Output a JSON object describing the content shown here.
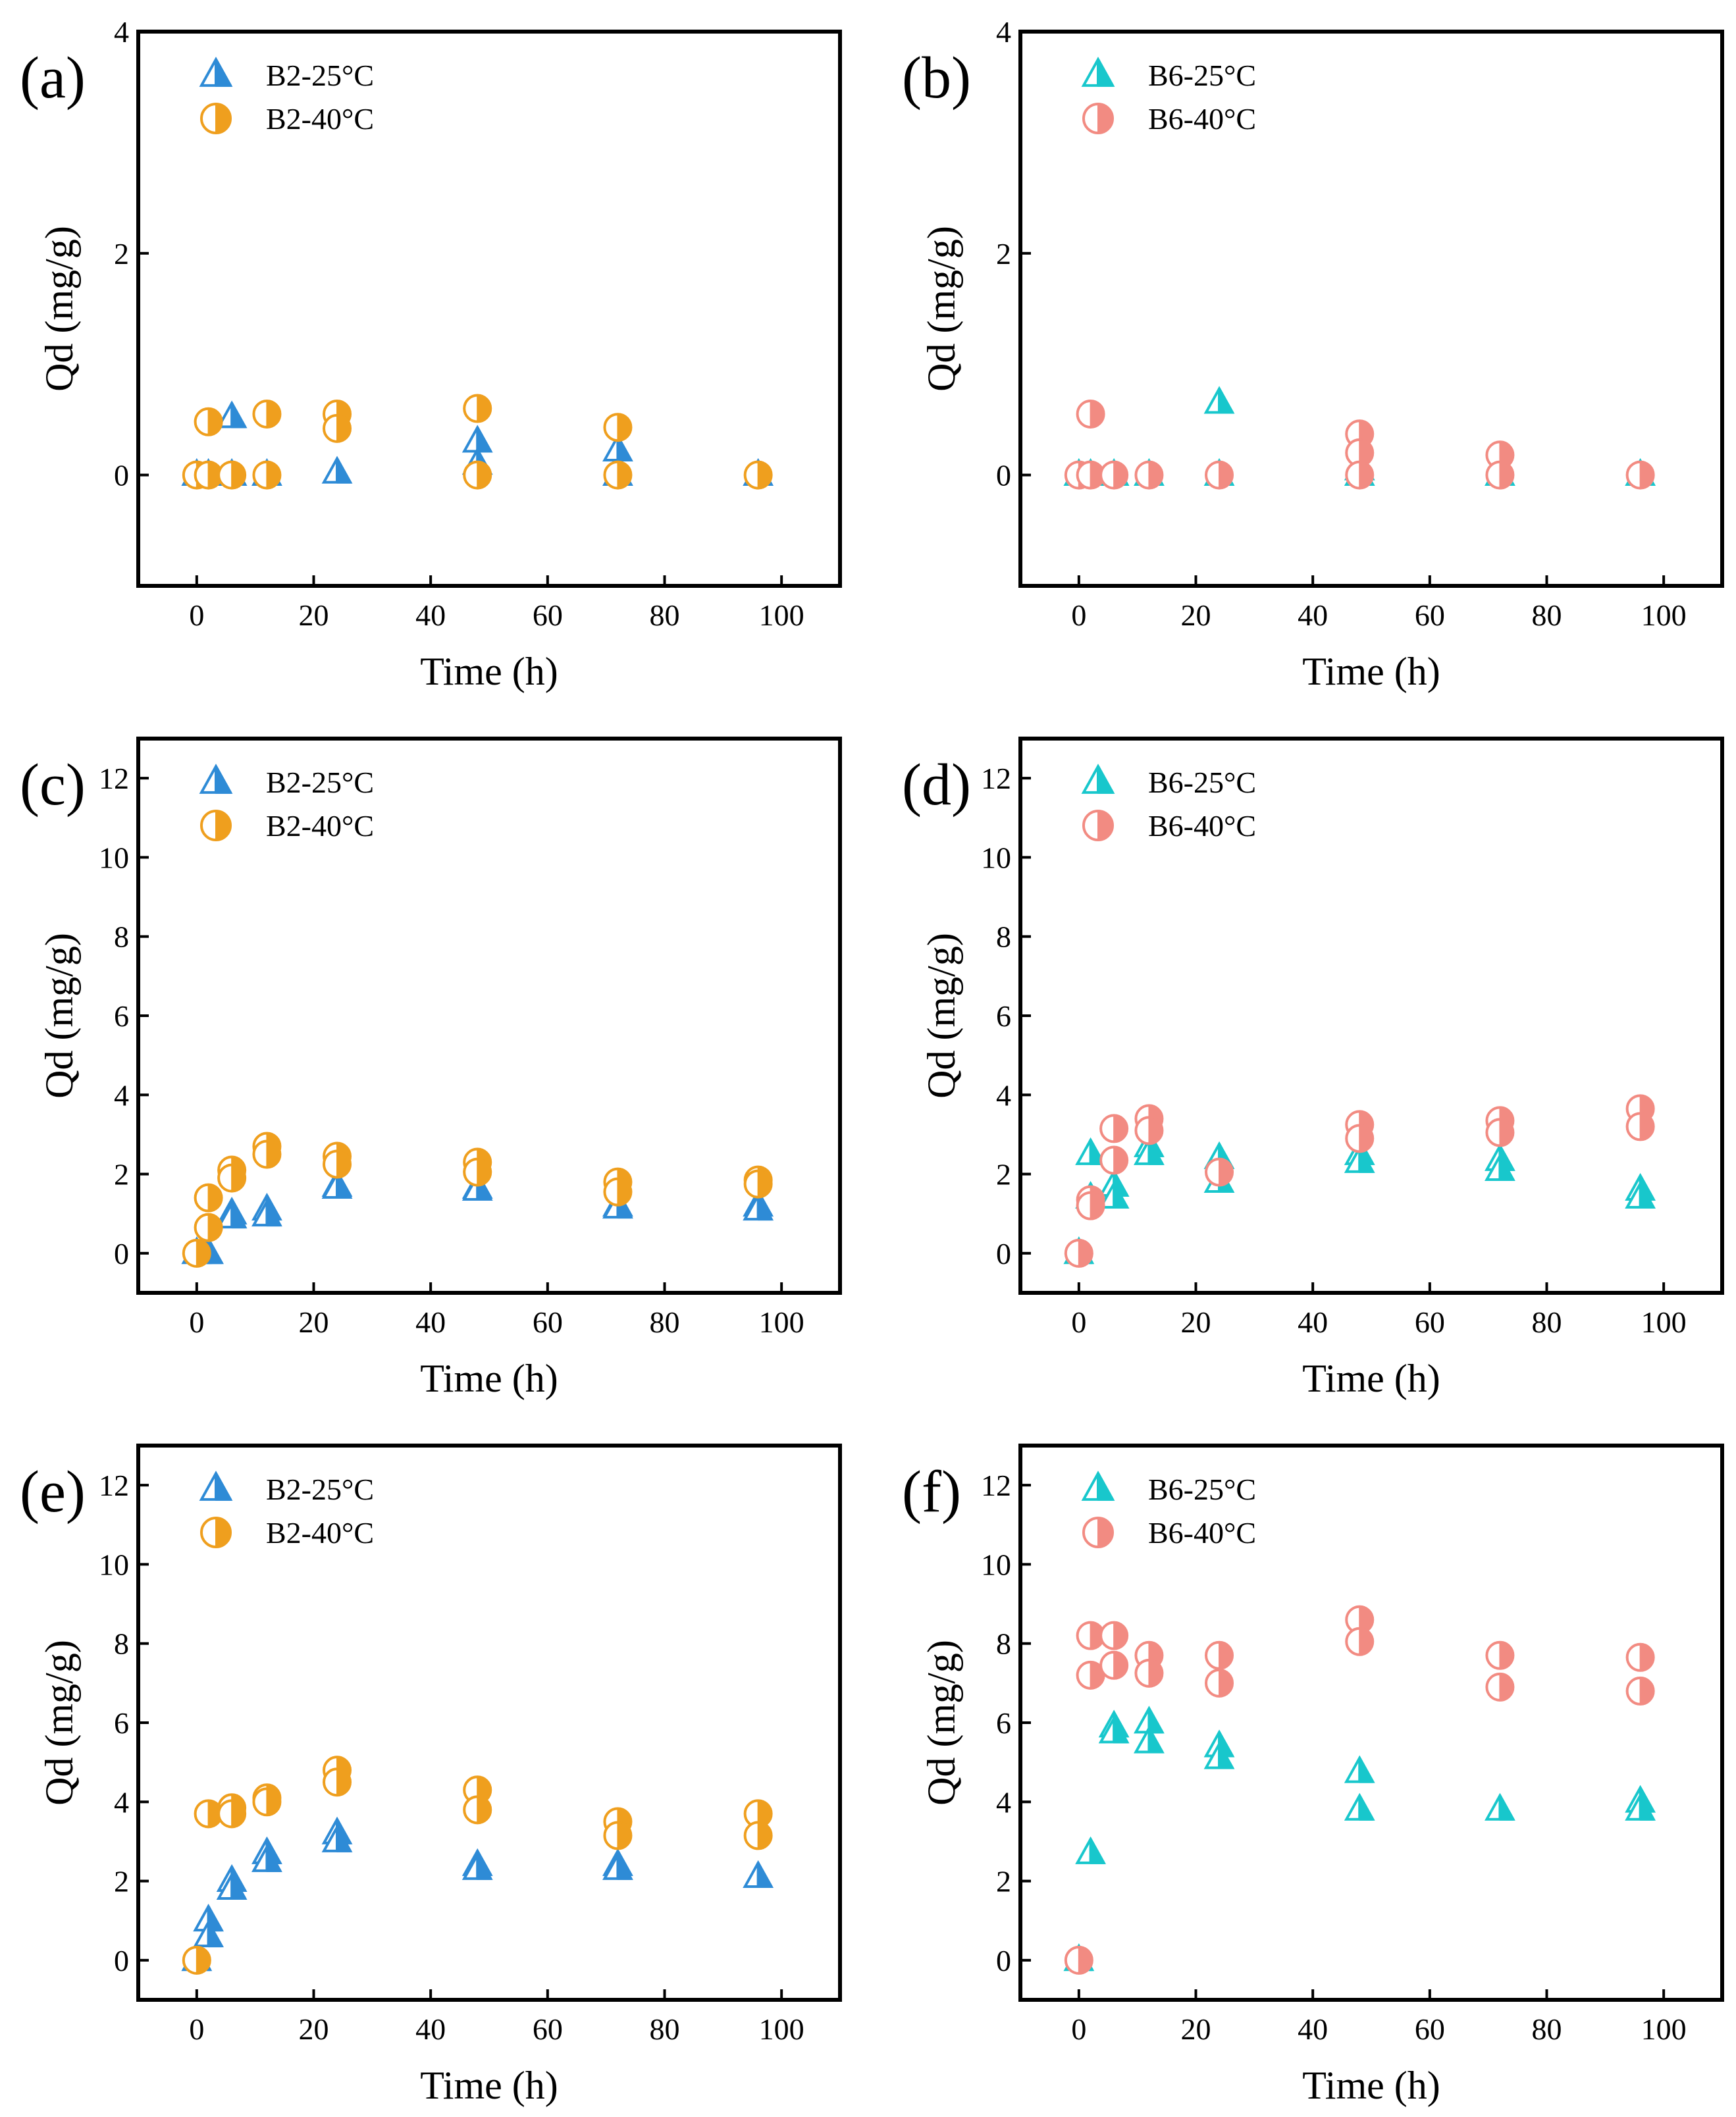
{
  "figure": {
    "colors": {
      "B2": "#2e8bd6",
      "B6_25": "#18c7cc",
      "B2_40": "#ef9f1e",
      "B6_40": "#f28b82"
    }
  },
  "chart_data": [
    {
      "panel": "(a)",
      "type": "scatter",
      "xlabel": "Time (h)",
      "ylabel": "Qd (mg/g)",
      "xlim": [
        -10,
        110
      ],
      "ylim": [
        -1,
        4
      ],
      "xticks": [
        0,
        20,
        40,
        60,
        80,
        100
      ],
      "yticks": [
        0,
        2,
        4
      ],
      "legend_position": "top-left",
      "series": [
        {
          "name": "B2-25°C",
          "marker": "triangle",
          "color_key": "B2",
          "points": [
            [
              0,
              0
            ],
            [
              2,
              0
            ],
            [
              6,
              0.52
            ],
            [
              6,
              0
            ],
            [
              12,
              0
            ],
            [
              24,
              0.02
            ],
            [
              48,
              0.3
            ],
            [
              48,
              0.1
            ],
            [
              72,
              0.22
            ],
            [
              72,
              0
            ],
            [
              96,
              0
            ]
          ]
        },
        {
          "name": "B2-40°C",
          "marker": "circle",
          "color_key": "B2_40",
          "points": [
            [
              0,
              0
            ],
            [
              2,
              0.48
            ],
            [
              2,
              0
            ],
            [
              6,
              0
            ],
            [
              12,
              0.55
            ],
            [
              12,
              0
            ],
            [
              24,
              0.55
            ],
            [
              24,
              0.42
            ],
            [
              48,
              0.6
            ],
            [
              48,
              0
            ],
            [
              72,
              0.43
            ],
            [
              72,
              0
            ],
            [
              96,
              0
            ]
          ]
        }
      ]
    },
    {
      "panel": "(b)",
      "type": "scatter",
      "xlabel": "Time (h)",
      "ylabel": "Qd (mg/g)",
      "xlim": [
        -10,
        110
      ],
      "ylim": [
        -1,
        4
      ],
      "xticks": [
        0,
        20,
        40,
        60,
        80,
        100
      ],
      "yticks": [
        0,
        2,
        4
      ],
      "legend_position": "top-left",
      "series": [
        {
          "name": "B6-25°C",
          "marker": "triangle",
          "color_key": "B6_25",
          "points": [
            [
              0,
              0
            ],
            [
              2,
              0
            ],
            [
              6,
              0
            ],
            [
              12,
              0
            ],
            [
              24,
              0.65
            ],
            [
              24,
              0
            ],
            [
              48,
              0.05
            ],
            [
              48,
              0
            ],
            [
              72,
              0
            ],
            [
              96,
              0
            ]
          ]
        },
        {
          "name": "B6-40°C",
          "marker": "circle",
          "color_key": "B6_40",
          "points": [
            [
              0,
              0
            ],
            [
              2,
              0.55
            ],
            [
              2,
              0
            ],
            [
              6,
              0
            ],
            [
              12,
              0
            ],
            [
              24,
              0
            ],
            [
              48,
              0.37
            ],
            [
              48,
              0.2
            ],
            [
              48,
              0
            ],
            [
              72,
              0.18
            ],
            [
              72,
              0
            ],
            [
              96,
              0
            ]
          ]
        }
      ]
    },
    {
      "panel": "(c)",
      "type": "scatter",
      "xlabel": "Time (h)",
      "ylabel": "Qd (mg/g)",
      "xlim": [
        -10,
        110
      ],
      "ylim": [
        -1,
        13
      ],
      "xticks": [
        0,
        20,
        40,
        60,
        80,
        100
      ],
      "yticks": [
        0,
        2,
        4,
        6,
        8,
        10,
        12
      ],
      "legend_position": "top-left",
      "series": [
        {
          "name": "B2-25°C",
          "marker": "triangle",
          "color_key": "B2",
          "points": [
            [
              0,
              0
            ],
            [
              2,
              0
            ],
            [
              6,
              1.0
            ],
            [
              6,
              0.9
            ],
            [
              12,
              1.1
            ],
            [
              12,
              0.95
            ],
            [
              24,
              1.7
            ],
            [
              24,
              1.65
            ],
            [
              48,
              1.65
            ],
            [
              48,
              1.6
            ],
            [
              72,
              1.2
            ],
            [
              72,
              1.15
            ],
            [
              96,
              1.2
            ],
            [
              96,
              1.1
            ]
          ]
        },
        {
          "name": "B2-40°C",
          "marker": "circle",
          "color_key": "B2_40",
          "points": [
            [
              0,
              0
            ],
            [
              2,
              1.4
            ],
            [
              2,
              0.65
            ],
            [
              6,
              2.1
            ],
            [
              6,
              1.9
            ],
            [
              12,
              2.7
            ],
            [
              12,
              2.5
            ],
            [
              24,
              2.45
            ],
            [
              24,
              2.25
            ],
            [
              48,
              2.3
            ],
            [
              48,
              2.05
            ],
            [
              72,
              1.8
            ],
            [
              72,
              1.55
            ],
            [
              96,
              1.85
            ],
            [
              96,
              1.75
            ]
          ]
        }
      ]
    },
    {
      "panel": "(d)",
      "type": "scatter",
      "xlabel": "Time (h)",
      "ylabel": "Qd (mg/g)",
      "xlim": [
        -10,
        110
      ],
      "ylim": [
        -1,
        13
      ],
      "xticks": [
        0,
        20,
        40,
        60,
        80,
        100
      ],
      "yticks": [
        0,
        2,
        4,
        6,
        8,
        10,
        12
      ],
      "legend_position": "top-left",
      "series": [
        {
          "name": "B6-25°C",
          "marker": "triangle",
          "color_key": "B6_25",
          "points": [
            [
              0,
              0
            ],
            [
              2,
              2.5
            ],
            [
              2,
              1.4
            ],
            [
              6,
              1.7
            ],
            [
              6,
              1.4
            ],
            [
              12,
              2.7
            ],
            [
              12,
              2.5
            ],
            [
              24,
              2.4
            ],
            [
              24,
              1.8
            ],
            [
              48,
              2.5
            ],
            [
              48,
              2.3
            ],
            [
              72,
              2.35
            ],
            [
              72,
              2.1
            ],
            [
              96,
              1.6
            ],
            [
              96,
              1.4
            ]
          ]
        },
        {
          "name": "B6-40°C",
          "marker": "circle",
          "color_key": "B6_40",
          "points": [
            [
              0,
              0
            ],
            [
              2,
              1.35
            ],
            [
              2,
              1.2
            ],
            [
              6,
              3.15
            ],
            [
              6,
              2.35
            ],
            [
              12,
              3.4
            ],
            [
              12,
              3.1
            ],
            [
              24,
              2.05
            ],
            [
              48,
              3.25
            ],
            [
              48,
              2.9
            ],
            [
              72,
              3.35
            ],
            [
              72,
              3.05
            ],
            [
              96,
              3.65
            ],
            [
              96,
              3.2
            ]
          ]
        }
      ]
    },
    {
      "panel": "(e)",
      "type": "scatter",
      "xlabel": "Time (h)",
      "ylabel": "Qd (mg/g)",
      "xlim": [
        -10,
        110
      ],
      "ylim": [
        -1,
        13
      ],
      "xticks": [
        0,
        20,
        40,
        60,
        80,
        100
      ],
      "yticks": [
        0,
        2,
        4,
        6,
        8,
        10,
        12
      ],
      "legend_position": "top-left",
      "series": [
        {
          "name": "B2-25°C",
          "marker": "triangle",
          "color_key": "B2",
          "points": [
            [
              0,
              0
            ],
            [
              2,
              1.0
            ],
            [
              2,
              0.6
            ],
            [
              6,
              2.0
            ],
            [
              6,
              1.8
            ],
            [
              12,
              2.7
            ],
            [
              12,
              2.5
            ],
            [
              24,
              3.2
            ],
            [
              24,
              3.0
            ],
            [
              48,
              2.4
            ],
            [
              48,
              2.3
            ],
            [
              72,
              2.4
            ],
            [
              72,
              2.3
            ],
            [
              96,
              2.1
            ]
          ]
        },
        {
          "name": "B2-40°C",
          "marker": "circle",
          "color_key": "B2_40",
          "points": [
            [
              0,
              0
            ],
            [
              2,
              3.7
            ],
            [
              6,
              3.85
            ],
            [
              6,
              3.7
            ],
            [
              12,
              4.1
            ],
            [
              12,
              4.0
            ],
            [
              24,
              4.8
            ],
            [
              24,
              4.5
            ],
            [
              48,
              4.3
            ],
            [
              48,
              3.8
            ],
            [
              72,
              3.5
            ],
            [
              72,
              3.15
            ],
            [
              96,
              3.7
            ],
            [
              96,
              3.15
            ]
          ]
        }
      ]
    },
    {
      "panel": "(f)",
      "type": "scatter",
      "xlabel": "Time (h)",
      "ylabel": "Qd (mg/g)",
      "xlim": [
        -10,
        110
      ],
      "ylim": [
        -1,
        13
      ],
      "xticks": [
        0,
        20,
        40,
        60,
        80,
        100
      ],
      "yticks": [
        0,
        2,
        4,
        6,
        8,
        10,
        12
      ],
      "legend_position": "top-left",
      "series": [
        {
          "name": "B6-25°C",
          "marker": "triangle",
          "color_key": "B6_25",
          "points": [
            [
              0,
              0
            ],
            [
              2,
              2.7
            ],
            [
              6,
              5.9
            ],
            [
              6,
              5.75
            ],
            [
              12,
              6.0
            ],
            [
              12,
              5.5
            ],
            [
              24,
              5.4
            ],
            [
              24,
              5.1
            ],
            [
              48,
              4.75
            ],
            [
              48,
              3.8
            ],
            [
              72,
              3.8
            ],
            [
              96,
              4.0
            ],
            [
              96,
              3.8
            ]
          ]
        },
        {
          "name": "B6-40°C",
          "marker": "circle",
          "color_key": "B6_40",
          "points": [
            [
              0,
              0
            ],
            [
              2,
              8.2
            ],
            [
              2,
              7.2
            ],
            [
              6,
              8.2
            ],
            [
              6,
              7.45
            ],
            [
              12,
              7.7
            ],
            [
              12,
              7.25
            ],
            [
              24,
              7.7
            ],
            [
              24,
              7.0
            ],
            [
              48,
              8.6
            ],
            [
              48,
              8.05
            ],
            [
              72,
              7.7
            ],
            [
              72,
              6.9
            ],
            [
              96,
              7.65
            ],
            [
              96,
              6.8
            ]
          ]
        }
      ]
    }
  ]
}
